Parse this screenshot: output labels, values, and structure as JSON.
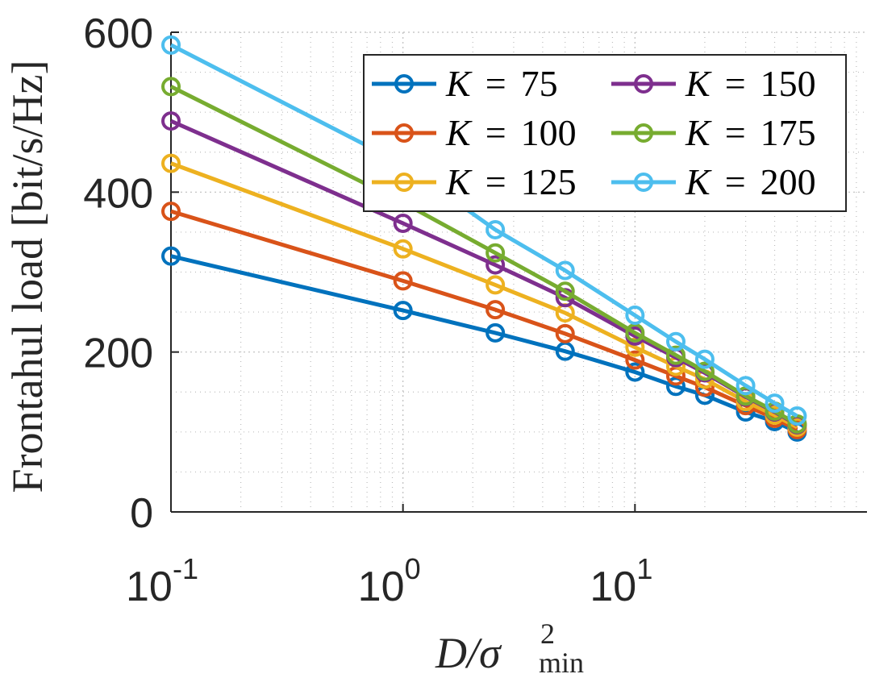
{
  "chart_data": {
    "type": "line",
    "xscale": "log",
    "xlim": [
      0.1,
      100
    ],
    "ylim": [
      0,
      600
    ],
    "grid": true,
    "minor_grid": true,
    "ylabel": "Frontahul load [bit/s/Hz]",
    "xlabel": {
      "main": "D/σ",
      "sup": "2",
      "sub": "min"
    },
    "yticks": [
      {
        "value": 0,
        "label": "0"
      },
      {
        "value": 200,
        "label": "200"
      },
      {
        "value": 400,
        "label": "400"
      },
      {
        "value": 600,
        "label": "600"
      }
    ],
    "xticks": [
      {
        "value": 0.1,
        "base": "10",
        "exp": "-1"
      },
      {
        "value": 1,
        "base": "10",
        "exp": "0"
      },
      {
        "value": 10,
        "base": "10",
        "exp": "1"
      }
    ],
    "legend_position": "top-right",
    "x": [
      0.1,
      1,
      2.5,
      5,
      10,
      15,
      20,
      30,
      40,
      50
    ],
    "series": [
      {
        "name": "K = 75",
        "legend_var": "K",
        "legend_value": "75",
        "color": "#0072BD",
        "values": [
          320,
          252,
          224,
          201,
          175,
          157,
          146,
          125,
          113,
          100
        ]
      },
      {
        "name": "K = 100",
        "legend_var": "K",
        "legend_value": "100",
        "color": "#D95319",
        "values": [
          376,
          289,
          253,
          223,
          190,
          170,
          156,
          133,
          117,
          103
        ]
      },
      {
        "name": "K = 125",
        "legend_var": "K",
        "legend_value": "125",
        "color": "#EDB120",
        "values": [
          436,
          329,
          284,
          249,
          206,
          182,
          166,
          138,
          121,
          106
        ]
      },
      {
        "name": "K = 150",
        "legend_var": "K",
        "legend_value": "150",
        "color": "#7E2F8E",
        "values": [
          489,
          361,
          309,
          268,
          220,
          193,
          174,
          144,
          125,
          109
        ]
      },
      {
        "name": "K = 175",
        "legend_var": "K",
        "legend_value": "175",
        "color": "#77AC30",
        "values": [
          532,
          387,
          324,
          276,
          224,
          196,
          176,
          145,
          126,
          110
        ]
      },
      {
        "name": "K = 200",
        "legend_var": "K",
        "legend_value": "200",
        "color": "#4DBEEE",
        "values": [
          584,
          435,
          353,
          302,
          246,
          213,
          191,
          158,
          136,
          120
        ]
      }
    ]
  }
}
